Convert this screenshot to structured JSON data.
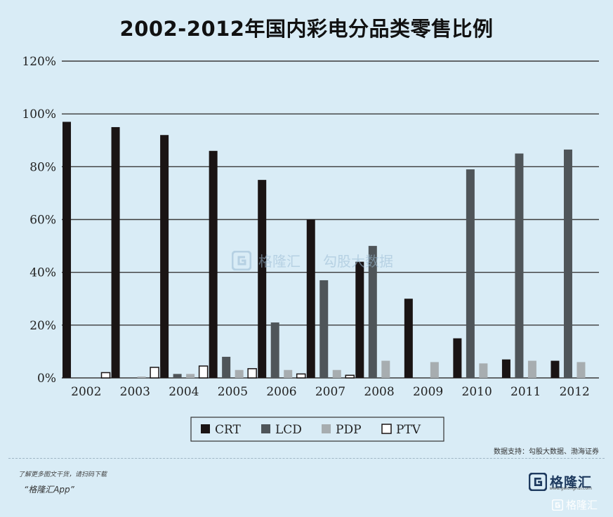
{
  "title": "2002-2012年国内彩电分品类零售比例",
  "source": "数据支持：勾股大数据、渤海证券",
  "footer": {
    "qr_note": "了解更多图文干货，请扫码下载",
    "app_name": "“格隆汇App”",
    "brand_name": "格隆汇",
    "brand_url": "www.gelonghui.com",
    "bottom_mark": "格隆汇"
  },
  "watermark": {
    "brand": "格隆汇",
    "partner": "勾股大数据",
    "partner_url": "www.gogudata.com"
  },
  "colors": {
    "background": "#d9ecf6",
    "CRT": "#1a1414",
    "LCD": "#4f5559",
    "PDP": "#a7adb0",
    "PTV": "#ffffff"
  },
  "chart_data": {
    "type": "bar",
    "categories": [
      "2002",
      "2003",
      "2004",
      "2005",
      "2006",
      "2007",
      "2008",
      "2009",
      "2010",
      "2011",
      "2012"
    ],
    "ylim": [
      0,
      120
    ],
    "yticks": [
      "0%",
      "20%",
      "40%",
      "60%",
      "80%",
      "100%",
      "120%"
    ],
    "grid": true,
    "legend_position": "bottom",
    "series": [
      {
        "name": "CRT",
        "values": [
          97,
          95,
          92,
          86,
          75,
          60,
          44,
          30,
          15,
          7,
          6.5
        ]
      },
      {
        "name": "LCD",
        "values": [
          0,
          0,
          1.5,
          8,
          21,
          37,
          50,
          0,
          79,
          85,
          86.5
        ]
      },
      {
        "name": "PDP",
        "values": [
          0,
          0.5,
          1.5,
          3,
          3,
          3,
          6.5,
          6,
          5.5,
          6.5,
          6
        ]
      },
      {
        "name": "PTV",
        "values": [
          2,
          4,
          4.5,
          3.5,
          1.5,
          1,
          0,
          0,
          0,
          0,
          0
        ]
      }
    ]
  }
}
